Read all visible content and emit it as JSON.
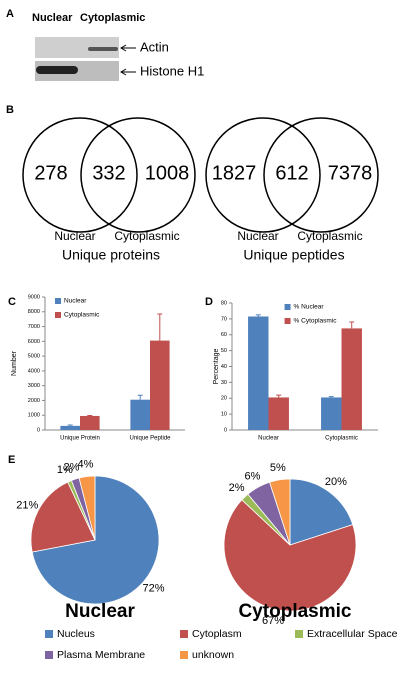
{
  "blot": {
    "panel": "A",
    "lanes": [
      "Nuclear",
      "Cytoplasmic"
    ],
    "bands": [
      "Actin",
      "Histone H1"
    ]
  },
  "chart_data": [
    {
      "type": "venn",
      "panel": "B",
      "sets": [
        "Nuclear",
        "Cytoplasmic"
      ],
      "diagrams": [
        {
          "title": "Unique proteins",
          "values": [
            278,
            332,
            1008
          ]
        },
        {
          "title": "Unique peptides",
          "values": [
            1827,
            612,
            7378
          ]
        }
      ]
    },
    {
      "type": "bar",
      "panel": "C",
      "ylabel": "Number",
      "categories": [
        "Unique Protein",
        "Unique Peptide"
      ],
      "series": [
        {
          "name": "Nuclear",
          "color": "#4f81bd",
          "values": [
            280,
            2050
          ],
          "errors": [
            60,
            300
          ]
        },
        {
          "name": "Cytoplasmic",
          "color": "#c0504d",
          "values": [
            950,
            6050
          ],
          "errors": [
            30,
            1800
          ]
        }
      ],
      "ylim": [
        0,
        9000
      ],
      "yticks": [
        0,
        1000,
        2000,
        3000,
        4000,
        5000,
        6000,
        7000,
        8000,
        9000
      ],
      "legend": "upper-left"
    },
    {
      "type": "bar",
      "panel": "D",
      "ylabel": "Percentage",
      "categories": [
        "Nuclear",
        "Cytoplasmic"
      ],
      "series": [
        {
          "name": "% Nuclear",
          "color": "#4f81bd",
          "values": [
            71.5,
            20.5
          ],
          "errors": [
            1,
            0.5
          ]
        },
        {
          "name": "% Cytoplasmic",
          "color": "#c0504d",
          "values": [
            20.5,
            64
          ],
          "errors": [
            1.5,
            4
          ]
        }
      ],
      "ylim": [
        0,
        80
      ],
      "yticks": [
        0,
        10,
        20,
        30,
        40,
        50,
        60,
        70,
        80
      ],
      "legend": "upper-center"
    },
    {
      "type": "pie",
      "panel": "E",
      "categories": [
        "Nucleus",
        "Cytoplasm",
        "Extracellular Space",
        "Plasma Membrane",
        "unknown"
      ],
      "colors": [
        "#4f81bd",
        "#c0504d",
        "#9bbb59",
        "#8064a2",
        "#f79646"
      ],
      "series": [
        {
          "name": "Nuclear",
          "values": [
            72,
            21,
            1,
            2,
            4
          ],
          "value_labels": [
            "72%",
            "21%",
            "1%",
            "2%",
            "4%"
          ]
        },
        {
          "name": "Cytoplasmic",
          "values": [
            20,
            67,
            2,
            6,
            5
          ],
          "value_labels": [
            "20%",
            "67%",
            "2%",
            "6%",
            "5%"
          ]
        }
      ]
    }
  ]
}
